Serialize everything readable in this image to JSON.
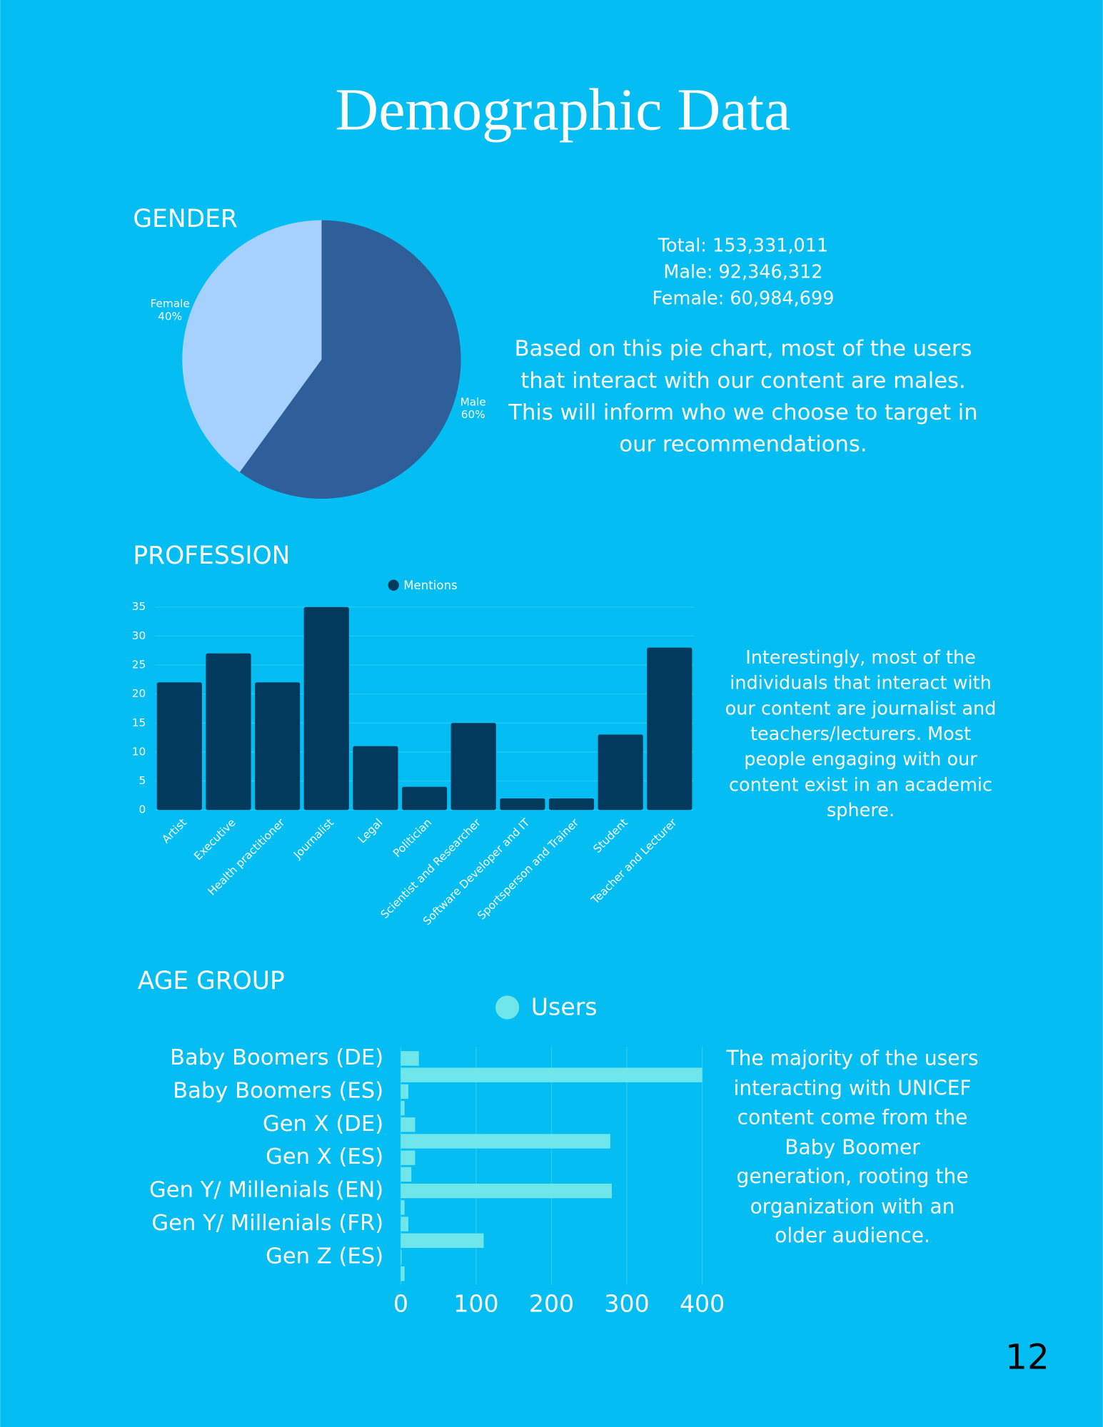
{
  "title": "Demographic Data",
  "page_number": "12",
  "gender_stats": [
    "Total: 153,331,011",
    "Male: 92,346,312",
    "Female: 60,984,699"
  ],
  "gender_text": "Based on this pie chart, most of the users that interact with our content are males. This will inform who we choose to target in our recommendations.",
  "profession_text": "Interestingly, most of the individuals that interact with our content are journalist and teachers/lecturers. Most people engaging with our content exist in an academic sphere.",
  "age_text": "The majority of the users interacting with UNICEF content come from the Baby Boomer generation, rooting the organization with an older audience.",
  "chart_data": [
    {
      "type": "pie",
      "title": "GENDER",
      "categories": [
        "Female",
        "Male"
      ],
      "values": [
        40,
        60
      ],
      "value_labels": [
        "40%",
        "60%"
      ],
      "colors": [
        "#a6d1ff",
        "#2e5f99"
      ]
    },
    {
      "type": "bar",
      "title": "PROFESSION",
      "categories": [
        "Artist",
        "Executive",
        "Health practitioner",
        "Journalist",
        "Legal",
        "Politician",
        "Scientist and Researcher",
        "Software Developer and IT",
        "Sportsperson and Trainer",
        "Student",
        "Teacher and Lecturer"
      ],
      "series": [
        {
          "name": "Mentions",
          "color": "#013a5c",
          "values": [
            22,
            27,
            22,
            35,
            11,
            4,
            15,
            2,
            2,
            13,
            28
          ]
        }
      ],
      "ylim": [
        0,
        35
      ],
      "yticks": [
        0,
        5,
        10,
        15,
        20,
        25,
        30,
        35
      ],
      "grid": true,
      "legend": "top"
    },
    {
      "type": "hbar",
      "title": "AGE GROUP",
      "categories": [
        "Baby Boomers (DE)",
        null,
        "Baby Boomers (ES)",
        null,
        "Gen X (DE)",
        null,
        "Gen X (ES)",
        null,
        "Gen Y/ Millenials (EN)",
        null,
        "Gen Y/ Millenials (FR)",
        null,
        "Gen Z (ES)",
        null
      ],
      "series": [
        {
          "name": "Users",
          "color": "#6ee6ea",
          "values": [
            24,
            400,
            10,
            5,
            19,
            278,
            19,
            14,
            280,
            5,
            10,
            110,
            1,
            5
          ]
        }
      ],
      "xlim": [
        0,
        400
      ],
      "xticks": [
        0,
        100,
        200,
        300,
        400
      ],
      "grid": true,
      "legend": "top"
    }
  ]
}
